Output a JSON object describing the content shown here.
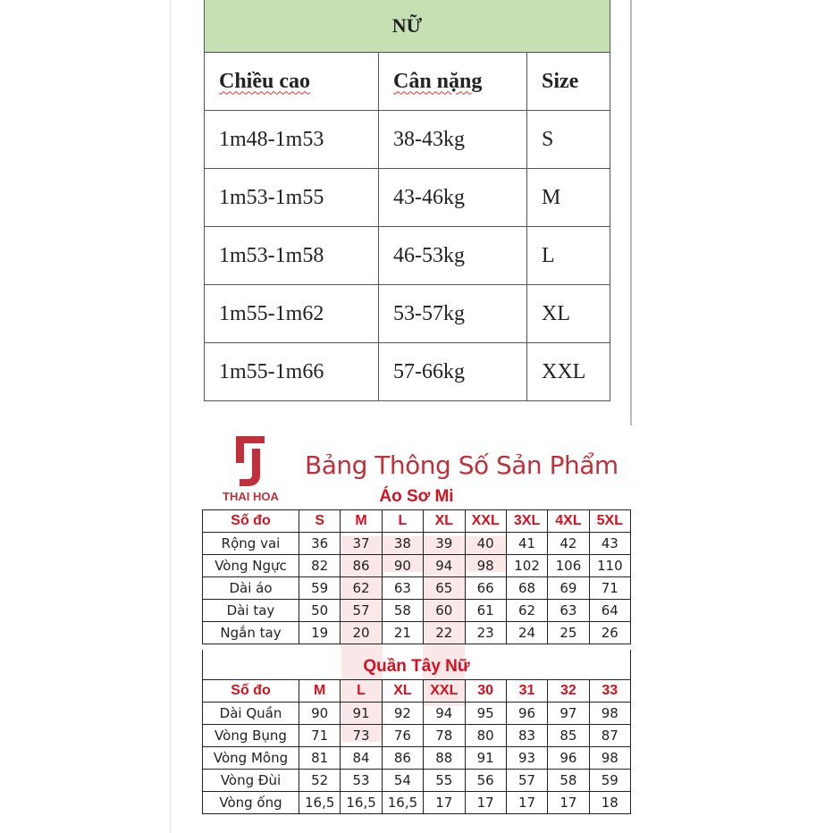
{
  "women_table": {
    "title": "NỮ",
    "headers": [
      "Chiều cao",
      "Cân nặng",
      "Size"
    ],
    "rows": [
      [
        "1m48-1m53",
        "38-43kg",
        "S"
      ],
      [
        "1m53-1m55",
        "43-46kg",
        "M"
      ],
      [
        "1m53-1m58",
        "46-53kg",
        "L"
      ],
      [
        "1m55-1m62",
        "53-57kg",
        "XL"
      ],
      [
        "1m55-1m66",
        "57-66kg",
        "XXL"
      ]
    ],
    "header_color": "#c6e0b4"
  },
  "brand": {
    "name": "THAI HOA",
    "color": "#c0303a"
  },
  "product_title": "Bảng Thông Số Sản Phẩm",
  "shirt": {
    "title": "Áo Sơ Mi",
    "headers": [
      "Số đo",
      "S",
      "M",
      "L",
      "XL",
      "XXL",
      "3XL",
      "4XL",
      "5XL"
    ],
    "rows": [
      [
        "Rộng vai",
        "36",
        "37",
        "38",
        "39",
        "40",
        "41",
        "42",
        "43"
      ],
      [
        "Vòng Ngực",
        "82",
        "86",
        "90",
        "94",
        "98",
        "102",
        "106",
        "110"
      ],
      [
        "Dài áo",
        "59",
        "62",
        "63",
        "65",
        "66",
        "68",
        "69",
        "71"
      ],
      [
        "Dài tay",
        "50",
        "57",
        "58",
        "60",
        "61",
        "62",
        "63",
        "64"
      ],
      [
        "Ngắn tay",
        "19",
        "20",
        "21",
        "22",
        "23",
        "24",
        "25",
        "26"
      ]
    ]
  },
  "pants": {
    "title": "Quần Tây Nữ",
    "headers": [
      "Số đo",
      "M",
      "L",
      "XL",
      "XXL",
      "30",
      "31",
      "32",
      "33"
    ],
    "rows": [
      [
        "Dài Quần",
        "90",
        "91",
        "92",
        "94",
        "95",
        "96",
        "97",
        "98"
      ],
      [
        "Vòng Bụng",
        "71",
        "73",
        "76",
        "78",
        "80",
        "83",
        "85",
        "87"
      ],
      [
        "Vòng Mông",
        "81",
        "84",
        "86",
        "88",
        "91",
        "93",
        "96",
        "98"
      ],
      [
        "Vòng Đùi",
        "52",
        "53",
        "54",
        "55",
        "56",
        "57",
        "58",
        "59"
      ],
      [
        "Vòng ống",
        "16,5",
        "16,5",
        "16,5",
        "17",
        "17",
        "17",
        "17",
        "18"
      ]
    ]
  },
  "accent_color": "#d6111f"
}
